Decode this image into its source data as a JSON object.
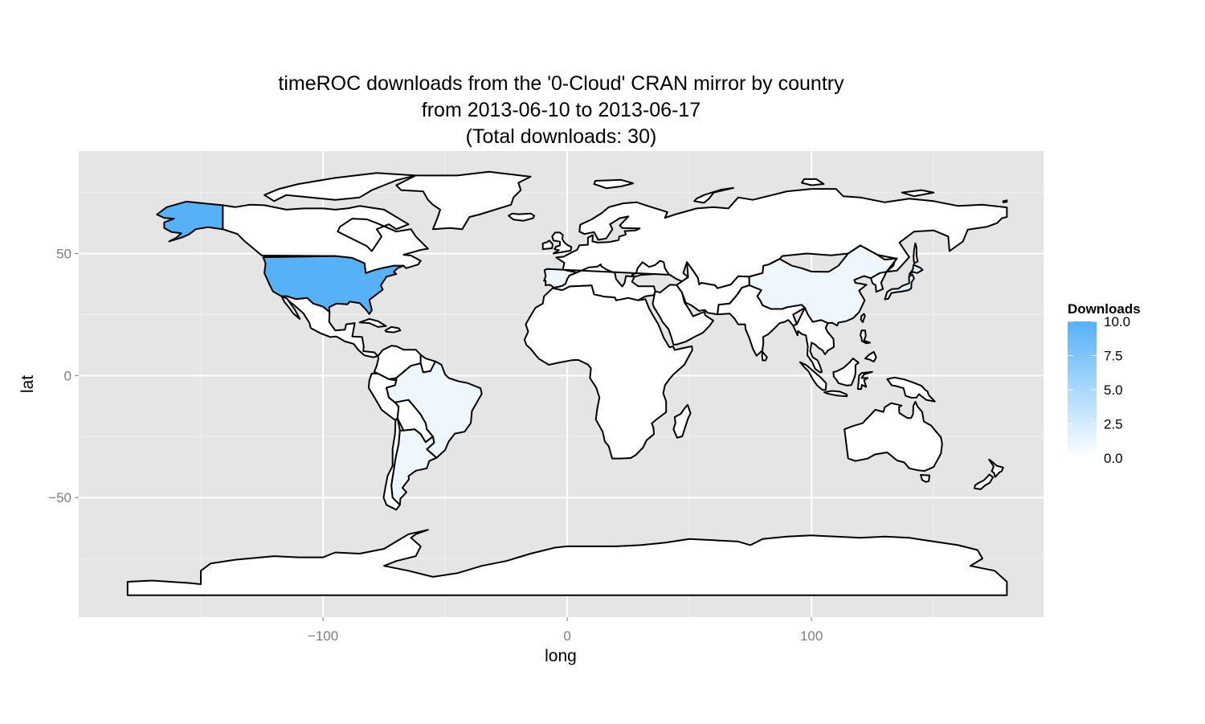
{
  "title": {
    "line1": "timeROC downloads from the '0-Cloud' CRAN mirror by country",
    "line2": "from 2013-06-10 to 2013-06-17",
    "line3": "(Total downloads: 30)"
  },
  "chart_data": {
    "type": "choropleth",
    "xlabel": "long",
    "ylabel": "lat",
    "xlim": [
      -200,
      195
    ],
    "ylim": [
      -99,
      92
    ],
    "x_ticks": [
      -100,
      0,
      100
    ],
    "x_tick_labels": [
      "−100",
      "0",
      "100"
    ],
    "y_ticks": [
      -50,
      0,
      50
    ],
    "y_tick_labels": [
      "−50",
      "0",
      "50"
    ],
    "grid": true,
    "legend": {
      "title": "Downloads",
      "position": "right",
      "range": [
        0,
        10
      ],
      "ticks": [
        0,
        2.5,
        5,
        7.5,
        10
      ],
      "tick_labels": [
        "0.0",
        "2.5",
        "5.0",
        "7.5",
        "10.0"
      ],
      "color_low": "#ffffff",
      "color_high": "#56b1f7"
    },
    "regions": [
      {
        "name": "United States",
        "value": 10
      },
      {
        "name": "China",
        "value": 1
      },
      {
        "name": "Brazil",
        "value": 1
      },
      {
        "name": "Argentina",
        "value": 1
      },
      {
        "name": "Spain",
        "value": 1
      },
      {
        "name": "Japan",
        "value": 2
      }
    ],
    "colors": {
      "panel_background": "#e5e5e5",
      "grid_major": "#ffffff",
      "grid_minor": "#f2f2f2",
      "land_default": "#ffffff",
      "border": "#000000"
    }
  }
}
